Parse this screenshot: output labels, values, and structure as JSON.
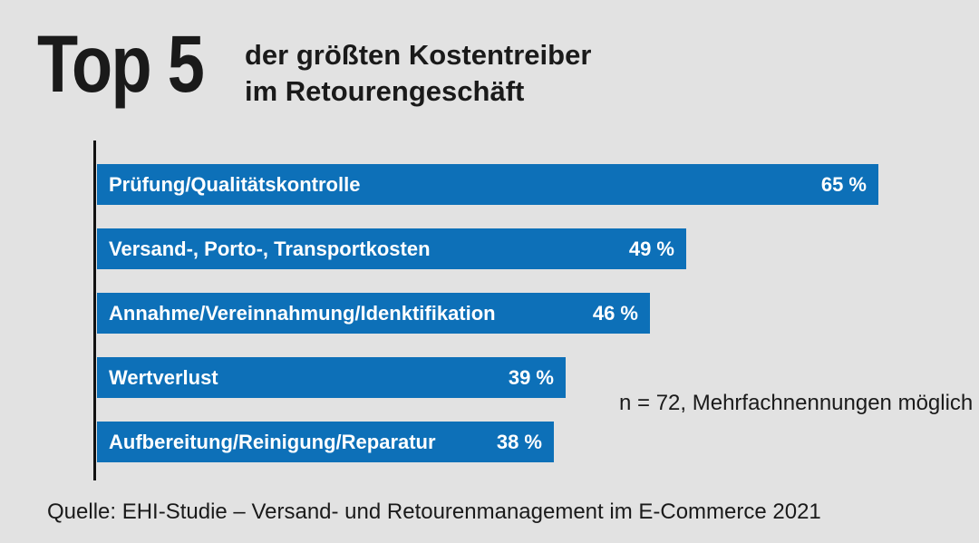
{
  "title": {
    "big": "Top 5",
    "subtitle_lines": [
      "der größten Kostentreiber",
      "im Retourengeschäft"
    ]
  },
  "annotation": "n = 72, Mehrfachnennungen möglich",
  "source": "Quelle: EHI-Studie – Versand- und Retourenmanagement im E-Commerce 2021",
  "colors": {
    "bar": "#0d70b8",
    "background": "#e2e2e2",
    "axis": "#111111",
    "bar_text": "#ffffff",
    "text": "#1a1a1a"
  },
  "chart_data": {
    "type": "bar",
    "orientation": "horizontal",
    "title": "Top 5 der größten Kostentreiber im Retourengeschäft",
    "categories": [
      "Prüfung/Qualitätskontrolle",
      "Versand-, Porto-, Transportkosten",
      "Annahme/Vereinnahmung/Idenktifikation",
      "Wertverlust",
      "Aufbereitung/Reinigung/Reparatur"
    ],
    "values": [
      65,
      49,
      46,
      39,
      38
    ],
    "value_labels": [
      "65 %",
      "49 %",
      "46 %",
      "39 %",
      "38 %"
    ],
    "unit": "%",
    "xlim": [
      0,
      65.5
    ],
    "grid": false,
    "legend": "none",
    "annotation": "n = 72, Mehrfachnennungen möglich",
    "source": "Quelle: EHI-Studie – Versand- und Retourenmanagement im E-Commerce 2021"
  }
}
